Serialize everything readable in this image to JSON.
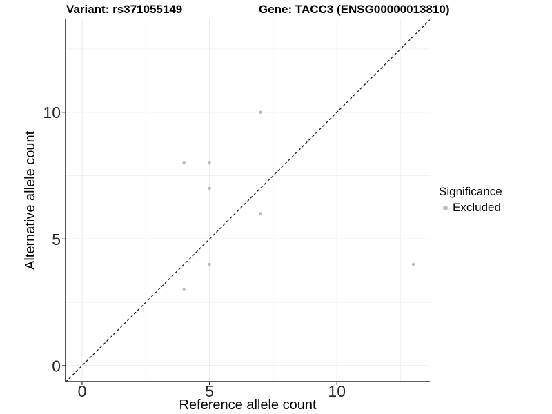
{
  "chart_data": {
    "type": "scatter",
    "titles": {
      "variant": "Variant: rs371055149",
      "gene": "Gene: TACC3 (ENSG00000013810)"
    },
    "xlabel": "Reference allele count",
    "ylabel": "Alternative allele count",
    "xlim": [
      -0.65,
      13.65
    ],
    "ylim": [
      -0.63,
      13.67
    ],
    "x_ticks": [
      0,
      5,
      10
    ],
    "y_ticks": [
      0,
      5,
      10
    ],
    "x_minor_ticks": [
      2.5,
      7.5,
      12.5
    ],
    "y_minor_ticks": [
      2.5,
      7.5,
      12.5
    ],
    "grid": true,
    "series": [
      {
        "name": "Excluded",
        "color": "#bdbdbd",
        "points": [
          {
            "x": 4,
            "y": 8
          },
          {
            "x": 5,
            "y": 8
          },
          {
            "x": 5,
            "y": 7
          },
          {
            "x": 7,
            "y": 10
          },
          {
            "x": 7,
            "y": 6
          },
          {
            "x": 5,
            "y": 4
          },
          {
            "x": 4,
            "y": 3
          },
          {
            "x": 13,
            "y": 4
          }
        ]
      }
    ],
    "identity_line": {
      "style": "dashed",
      "from": -0.65,
      "to": 13.65,
      "color": "#1a1a1a"
    },
    "legend": {
      "title": "Significance",
      "position": "right"
    },
    "colors": {
      "grid_major": "#e8e8e8",
      "grid_minor": "#f2f2f2",
      "axis": "#2b2b2b",
      "point": "#bdbdbd"
    }
  }
}
